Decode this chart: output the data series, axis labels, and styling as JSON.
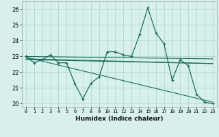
{
  "xlabel": "Humidex (Indice chaleur)",
  "ylabel": "",
  "xlim": [
    -0.5,
    23.5
  ],
  "ylim": [
    19.8,
    26.5
  ],
  "xticks": [
    0,
    1,
    2,
    3,
    4,
    5,
    6,
    7,
    8,
    9,
    10,
    11,
    12,
    13,
    14,
    15,
    16,
    17,
    18,
    19,
    20,
    21,
    22,
    23
  ],
  "yticks": [
    20,
    21,
    22,
    23,
    24,
    25,
    26
  ],
  "bg_color": "#d8f0ec",
  "grid_color": "#b0d8d0",
  "line_color": "#1a6b5a",
  "main_series_x": [
    0,
    1,
    2,
    3,
    4,
    5,
    6,
    7,
    8,
    9,
    10,
    11,
    12,
    13,
    14,
    15,
    16,
    17,
    18,
    19,
    20,
    21,
    22,
    23
  ],
  "main_series_y": [
    23.0,
    22.6,
    22.8,
    23.1,
    22.6,
    22.6,
    21.3,
    20.3,
    21.3,
    21.7,
    23.3,
    23.3,
    23.1,
    23.0,
    24.4,
    26.1,
    24.5,
    23.8,
    21.5,
    22.8,
    22.4,
    20.6,
    20.1,
    20.0
  ],
  "trend1_x": [
    0,
    23
  ],
  "trend1_y": [
    23.0,
    22.85
  ],
  "trend2_x": [
    0,
    23
  ],
  "trend2_y": [
    22.8,
    22.55
  ],
  "trend3_x": [
    0,
    23
  ],
  "trend3_y": [
    22.95,
    20.1
  ],
  "trend4_x": [
    0,
    23
  ],
  "trend4_y": [
    22.85,
    22.55
  ]
}
